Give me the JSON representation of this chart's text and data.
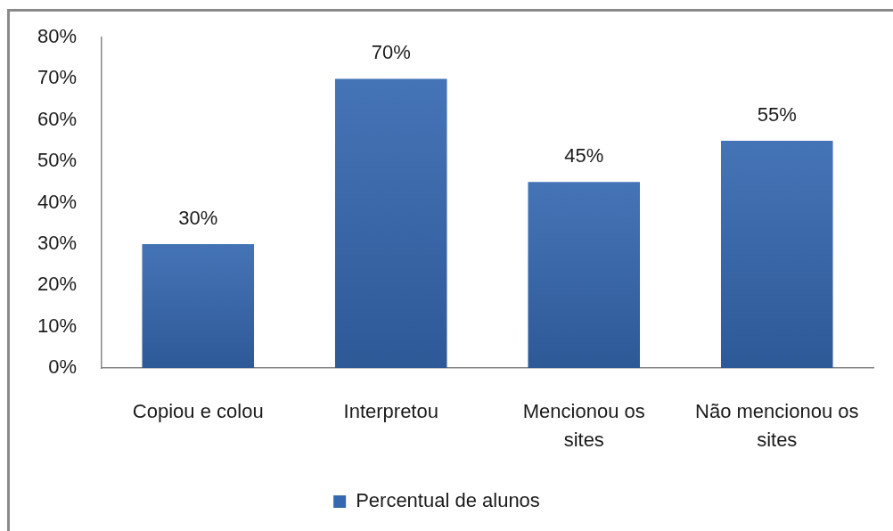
{
  "chart_data": {
    "type": "bar",
    "categories": [
      "Copiou e colou",
      "Interpretou",
      "Mencionou os sites",
      "Não mencionou os sites"
    ],
    "series": [
      {
        "name": "Percentual de alunos",
        "color": "#3568b0",
        "values": [
          30,
          70,
          45,
          55
        ],
        "value_labels": [
          "30%",
          "70%",
          "45%",
          "55%"
        ]
      }
    ],
    "ylim": [
      0,
      80
    ],
    "yticks": [
      {
        "value": 0,
        "label": "0%"
      },
      {
        "value": 10,
        "label": "10%"
      },
      {
        "value": 20,
        "label": "20%"
      },
      {
        "value": 30,
        "label": "30%"
      },
      {
        "value": 40,
        "label": "40%"
      },
      {
        "value": 50,
        "label": "50%"
      },
      {
        "value": 60,
        "label": "60%"
      },
      {
        "value": 70,
        "label": "70%"
      },
      {
        "value": 80,
        "label": "80%"
      }
    ],
    "legend": "bottom"
  }
}
